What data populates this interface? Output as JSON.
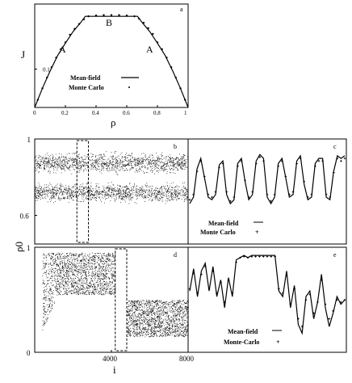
{
  "chart_data": [
    {
      "panel_label": "a",
      "type": "line",
      "xlabel": "ρ",
      "ylabel": "J",
      "xlim": [
        0,
        1
      ],
      "ylim": [
        0,
        0.27
      ],
      "x_ticks": [
        "0",
        "0.2",
        "0.4",
        "0.6",
        "0.8",
        "1"
      ],
      "y_ticks": [
        "0.1"
      ],
      "annotations": [
        {
          "text": "A",
          "x": 0.18,
          "y": 0.155
        },
        {
          "text": "B",
          "x": 0.47,
          "y": 0.235
        },
        {
          "text": "A",
          "x": 0.78,
          "y": 0.155
        }
      ],
      "legend": [
        {
          "label": "Mean-field",
          "symbol": "line"
        },
        {
          "label": "Monte Carlo",
          "symbol": "dot"
        }
      ],
      "legend_position": "bottom-center",
      "series": [
        {
          "name": "Mean-field",
          "style": "line",
          "x": [
            0,
            0.05,
            0.1,
            0.15,
            0.2,
            0.25,
            0.3,
            0.33,
            0.67,
            0.7,
            0.75,
            0.8,
            0.85,
            0.9,
            0.95,
            1
          ],
          "y": [
            0,
            0.05,
            0.095,
            0.136,
            0.168,
            0.198,
            0.222,
            0.238,
            0.238,
            0.222,
            0.198,
            0.168,
            0.136,
            0.095,
            0.05,
            0
          ]
        },
        {
          "name": "Monte Carlo",
          "style": "dots",
          "x": [
            0.02,
            0.05,
            0.08,
            0.11,
            0.14,
            0.17,
            0.2,
            0.23,
            0.26,
            0.29,
            0.32,
            0.35,
            0.4,
            0.45,
            0.5,
            0.55,
            0.6,
            0.65,
            0.68,
            0.71,
            0.74,
            0.77,
            0.8,
            0.83,
            0.86,
            0.89,
            0.92,
            0.95,
            0.98
          ],
          "y": [
            0.02,
            0.05,
            0.078,
            0.105,
            0.13,
            0.152,
            0.17,
            0.19,
            0.205,
            0.218,
            0.23,
            0.238,
            0.24,
            0.241,
            0.241,
            0.241,
            0.24,
            0.238,
            0.232,
            0.221,
            0.207,
            0.192,
            0.17,
            0.152,
            0.13,
            0.105,
            0.078,
            0.05,
            0.02
          ]
        }
      ]
    },
    {
      "panel_label": "b",
      "type": "scatter",
      "ylabel": "ρ0",
      "xlim": [
        0,
        8000
      ],
      "ylim": [
        0.45,
        1
      ],
      "y_ticks": [
        "0.6",
        "1"
      ],
      "bands": [
        {
          "y_center": 0.875,
          "spread": 0.07
        },
        {
          "y_center": 0.72,
          "spread": 0.065
        }
      ],
      "highlight_window": [
        2200,
        2800
      ]
    },
    {
      "panel_label": "c",
      "type": "line",
      "legend": [
        {
          "label": "Mean-field",
          "symbol": "line"
        },
        {
          "label": "Monte Carlo",
          "symbol": "+"
        }
      ],
      "legend_position": "bottom-center",
      "series": [
        {
          "name": "Mean-field",
          "style": "line",
          "y": [
            0.55,
            0.6,
            0.82,
            0.9,
            0.75,
            0.6,
            0.58,
            0.62,
            0.85,
            0.88,
            0.62,
            0.55,
            0.58,
            0.86,
            0.9,
            0.72,
            0.58,
            0.62,
            0.88,
            0.93,
            0.9,
            0.6,
            0.55,
            0.6,
            0.86,
            0.9,
            0.75,
            0.6,
            0.62,
            0.88,
            0.92,
            0.7,
            0.58,
            0.6,
            0.86,
            0.9,
            0.9,
            0.6,
            0.58,
            0.8,
            0.92,
            0.9,
            0.92
          ]
        },
        {
          "name": "Monte Carlo",
          "style": "plus",
          "y": [
            0.58,
            0.62,
            0.8,
            0.88,
            0.76,
            0.62,
            0.6,
            0.64,
            0.83,
            0.86,
            0.64,
            0.57,
            0.6,
            0.84,
            0.88,
            0.73,
            0.6,
            0.64,
            0.86,
            0.91,
            0.88,
            0.62,
            0.57,
            0.62,
            0.84,
            0.88,
            0.76,
            0.62,
            0.64,
            0.86,
            0.9,
            0.72,
            0.6,
            0.62,
            0.84,
            0.88,
            0.88,
            0.62,
            0.6,
            0.79,
            0.9,
            0.88,
            0.9
          ]
        }
      ]
    },
    {
      "panel_label": "d",
      "type": "scatter",
      "xlim": [
        0,
        8000
      ],
      "ylim": [
        0,
        1
      ],
      "x_ticks": [
        "4000",
        "8000"
      ],
      "y_ticks": [
        "0",
        "1"
      ],
      "xlabel": "i",
      "segments": [
        {
          "x_start": 400,
          "x_end": 4200,
          "low": 0.55,
          "high": 0.95,
          "ramp": [
            400,
            1200
          ]
        },
        {
          "x_start": 4800,
          "x_end": 8000,
          "low": 0.15,
          "high": 0.5
        }
      ],
      "highlight_window": [
        4200,
        4800
      ]
    },
    {
      "panel_label": "e",
      "type": "line",
      "legend": [
        {
          "label": "Mean-field",
          "symbol": "line"
        },
        {
          "label": "Monte-Carlo",
          "symbol": "+"
        }
      ],
      "legend_position": "bottom-center",
      "series": [
        {
          "name": "Mean-field",
          "style": "line",
          "y": [
            0.6,
            0.8,
            0.55,
            0.78,
            0.85,
            0.6,
            0.82,
            0.55,
            0.7,
            0.45,
            0.72,
            0.55,
            0.88,
            0.9,
            0.92,
            0.9,
            0.92,
            0.92,
            0.92,
            0.92,
            0.92,
            0.92,
            0.92,
            0.6,
            0.55,
            0.78,
            0.45,
            0.65,
            0.3,
            0.22,
            0.55,
            0.6,
            0.35,
            0.5,
            0.75,
            0.45,
            0.28,
            0.4,
            0.55,
            0.48,
            0.52
          ]
        },
        {
          "name": "Monte-Carlo",
          "style": "plus",
          "y": [
            0.62,
            0.76,
            0.58,
            0.75,
            0.82,
            0.62,
            0.78,
            0.58,
            0.68,
            0.5,
            0.7,
            0.58,
            0.86,
            0.9,
            0.91,
            0.9,
            0.91,
            0.91,
            0.91,
            0.91,
            0.91,
            0.91,
            0.91,
            0.62,
            0.58,
            0.74,
            0.48,
            0.62,
            0.35,
            0.28,
            0.52,
            0.57,
            0.4,
            0.5,
            0.7,
            0.48,
            0.35,
            0.42,
            0.52,
            0.5,
            0.52
          ]
        }
      ]
    }
  ]
}
